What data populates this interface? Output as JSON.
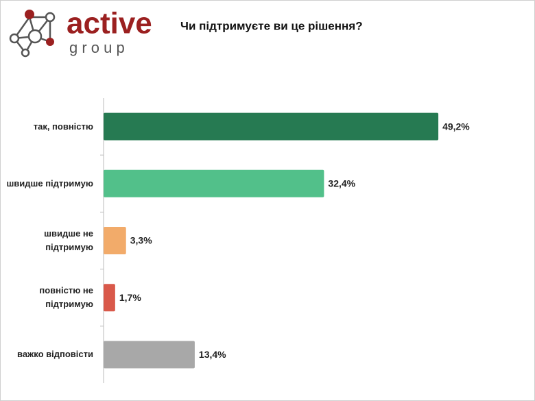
{
  "logo": {
    "name": "active",
    "sub": "g r o u p"
  },
  "chart_data": {
    "type": "bar",
    "orientation": "horizontal",
    "title": "Чи підтримуєте ви це рішення?",
    "categories": [
      "так, повністю",
      "швидше підтримую",
      "швидше не\nпідтримую",
      "повністю не\nпідтримую",
      "важко відповісти"
    ],
    "values": [
      49.2,
      32.4,
      3.3,
      1.7,
      13.4
    ],
    "value_labels": [
      "49,2%",
      "32,4%",
      "3,3%",
      "1,7%",
      "13,4%"
    ],
    "colors": [
      "#267a52",
      "#52c08a",
      "#f2ab6a",
      "#d9594a",
      "#a8a8a8"
    ],
    "xlim": [
      0,
      50
    ]
  }
}
